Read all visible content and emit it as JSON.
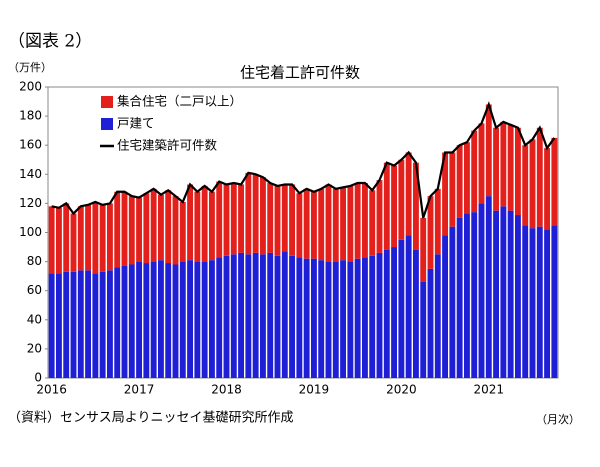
{
  "header": {
    "label": "（図表 2）"
  },
  "chart_data": {
    "type": "bar",
    "stacked": true,
    "title": "住宅着工許可件数",
    "y_label": "（万件）",
    "x_note": "（月次）",
    "source": "（資料）センサス局よりニッセイ基礎研究所作成",
    "categories": [
      "2016",
      null,
      null,
      null,
      null,
      null,
      null,
      null,
      null,
      null,
      null,
      null,
      "2017",
      null,
      null,
      null,
      null,
      null,
      null,
      null,
      null,
      null,
      null,
      null,
      "2018",
      null,
      null,
      null,
      null,
      null,
      null,
      null,
      null,
      null,
      null,
      null,
      "2019",
      null,
      null,
      null,
      null,
      null,
      null,
      null,
      null,
      null,
      null,
      null,
      "2020",
      null,
      null,
      null,
      null,
      null,
      null,
      null,
      null,
      null,
      null,
      null,
      "2021",
      null,
      null,
      null,
      null,
      null,
      null,
      null,
      null,
      null
    ],
    "series": [
      {
        "name": "集合住宅（二戸以上）",
        "type": "bar",
        "color": "#e3201c",
        "values": [
          46,
          45,
          47,
          40,
          44,
          45,
          49,
          46,
          46,
          52,
          51,
          47,
          44,
          48,
          50,
          45,
          50,
          47,
          41,
          52,
          48,
          52,
          47,
          52,
          49,
          49,
          47,
          56,
          54,
          53,
          48,
          48,
          46,
          49,
          44,
          48,
          46,
          49,
          53,
          50,
          50,
          52,
          52,
          51,
          45,
          50,
          60,
          56,
          55,
          57,
          60,
          44,
          50,
          45,
          57,
          51,
          50,
          49,
          56,
          55,
          63,
          57,
          58,
          59,
          60,
          55,
          61,
          68,
          56,
          60
        ]
      },
      {
        "name": "戸建て",
        "type": "bar",
        "color": "#1f1fd6",
        "values": [
          72,
          72,
          73,
          73,
          74,
          74,
          72,
          73,
          74,
          76,
          77,
          78,
          80,
          79,
          80,
          81,
          79,
          78,
          80,
          81,
          80,
          80,
          81,
          83,
          84,
          85,
          86,
          85,
          86,
          85,
          86,
          84,
          87,
          84,
          83,
          82,
          82,
          81,
          80,
          80,
          81,
          80,
          82,
          83,
          84,
          86,
          88,
          90,
          95,
          98,
          88,
          66,
          75,
          85,
          98,
          104,
          110,
          113,
          114,
          120,
          125,
          115,
          118,
          115,
          112,
          105,
          103,
          104,
          102,
          105
        ]
      },
      {
        "name": "住宅建築許可件数",
        "type": "line",
        "color": "#000000",
        "values": [
          118,
          117,
          120,
          113,
          118,
          119,
          121,
          119,
          120,
          128,
          128,
          125,
          124,
          127,
          130,
          126,
          129,
          125,
          121,
          133,
          128,
          132,
          128,
          135,
          133,
          134,
          133,
          141,
          140,
          138,
          134,
          132,
          133,
          133,
          127,
          130,
          128,
          130,
          133,
          130,
          131,
          132,
          134,
          134,
          129,
          136,
          148,
          146,
          150,
          155,
          148,
          110,
          125,
          130,
          155,
          155,
          160,
          162,
          170,
          175,
          188,
          172,
          176,
          174,
          172,
          160,
          164,
          172,
          158,
          165
        ]
      }
    ],
    "ylim": [
      0,
      200
    ],
    "yticks": [
      0,
      20,
      40,
      60,
      80,
      100,
      120,
      140,
      160,
      180,
      200
    ],
    "grid": false
  }
}
